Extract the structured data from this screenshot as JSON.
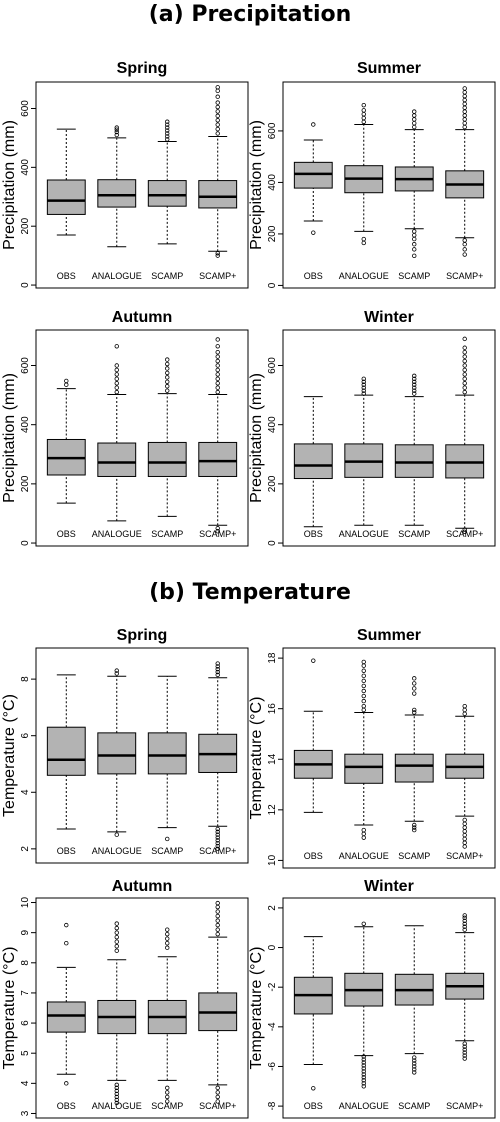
{
  "sections": [
    {
      "title": "(a) Precipitation"
    },
    {
      "title": "(b) Temperature"
    }
  ],
  "style": {
    "box_fill": "#b3b3b3",
    "stroke": "#000000",
    "outlier": "#000000"
  },
  "chart_data": [
    {
      "type": "boxplot",
      "title": "Spring",
      "ylabel": "Precipitation (mm)",
      "ylim": [
        -10,
        690
      ],
      "yticks": [
        0,
        200,
        400,
        600
      ],
      "categories": [
        "OBS",
        "ANALOGUE",
        "SCAMP",
        "SCAMP+"
      ],
      "boxes": [
        {
          "whisker_low": 170,
          "q1": 240,
          "median": 287,
          "q3": 357,
          "whisker_high": 530,
          "outliers": []
        },
        {
          "whisker_low": 130,
          "q1": 265,
          "median": 305,
          "q3": 358,
          "whisker_high": 500,
          "outliers": [
            510,
            520,
            528,
            535
          ]
        },
        {
          "whisker_low": 140,
          "q1": 268,
          "median": 305,
          "q3": 355,
          "whisker_high": 488,
          "outliers": [
            495,
            505,
            515,
            525,
            535,
            545,
            555
          ]
        },
        {
          "whisker_low": 115,
          "q1": 262,
          "median": 300,
          "q3": 355,
          "whisker_high": 505,
          "outliers": [
            100,
            108,
            515,
            530,
            545,
            560,
            575,
            590,
            605,
            620,
            640,
            660,
            672
          ]
        }
      ]
    },
    {
      "type": "boxplot",
      "title": "Summer",
      "ylabel": "Precipitation (mm)",
      "ylim": [
        -10,
        790
      ],
      "yticks": [
        0,
        200,
        400,
        600
      ],
      "categories": [
        "OBS",
        "ANALOGUE",
        "SCAMP",
        "SCAMP+"
      ],
      "boxes": [
        {
          "whisker_low": 250,
          "q1": 378,
          "median": 433,
          "q3": 478,
          "whisker_high": 565,
          "outliers": [
            205,
            625
          ]
        },
        {
          "whisker_low": 210,
          "q1": 360,
          "median": 415,
          "q3": 465,
          "whisker_high": 625,
          "outliers": [
            165,
            180,
            635,
            650,
            665,
            680,
            700
          ]
        },
        {
          "whisker_low": 220,
          "q1": 367,
          "median": 413,
          "q3": 460,
          "whisker_high": 605,
          "outliers": [
            115,
            140,
            160,
            180,
            195,
            210,
            615,
            630,
            645,
            660,
            675
          ]
        },
        {
          "whisker_low": 185,
          "q1": 340,
          "median": 392,
          "q3": 445,
          "whisker_high": 605,
          "outliers": [
            120,
            140,
            160,
            175,
            615,
            630,
            645,
            660,
            675,
            690,
            705,
            720,
            735,
            750,
            765
          ]
        }
      ]
    },
    {
      "type": "boxplot",
      "title": "Autumn",
      "ylabel": "Precipitation (mm)",
      "ylim": [
        -10,
        720
      ],
      "yticks": [
        0,
        200,
        400,
        600
      ],
      "categories": [
        "OBS",
        "ANALOGUE",
        "SCAMP",
        "SCAMP+"
      ],
      "boxes": [
        {
          "whisker_low": 135,
          "q1": 230,
          "median": 287,
          "q3": 350,
          "whisker_high": 522,
          "outliers": [
            535,
            548
          ]
        },
        {
          "whisker_low": 75,
          "q1": 225,
          "median": 272,
          "q3": 338,
          "whisker_high": 502,
          "outliers": [
            510,
            525,
            540,
            555,
            570,
            585,
            600,
            665
          ]
        },
        {
          "whisker_low": 90,
          "q1": 225,
          "median": 272,
          "q3": 340,
          "whisker_high": 505,
          "outliers": [
            515,
            530,
            545,
            560,
            575,
            590,
            605,
            620
          ]
        },
        {
          "whisker_low": 60,
          "q1": 225,
          "median": 277,
          "q3": 340,
          "whisker_high": 502,
          "outliers": [
            40,
            50,
            510,
            525,
            540,
            555,
            570,
            585,
            600,
            615,
            630,
            645,
            665,
            688
          ]
        }
      ]
    },
    {
      "type": "boxplot",
      "title": "Winter",
      "ylabel": "Precipitation (mm)",
      "ylim": [
        -10,
        720
      ],
      "yticks": [
        0,
        200,
        400,
        600
      ],
      "categories": [
        "OBS",
        "ANALOGUE",
        "SCAMP",
        "SCAMP+"
      ],
      "boxes": [
        {
          "whisker_low": 55,
          "q1": 218,
          "median": 262,
          "q3": 335,
          "whisker_high": 495,
          "outliers": []
        },
        {
          "whisker_low": 60,
          "q1": 222,
          "median": 275,
          "q3": 335,
          "whisker_high": 500,
          "outliers": [
            505,
            515,
            525,
            535,
            545,
            555
          ]
        },
        {
          "whisker_low": 60,
          "q1": 222,
          "median": 272,
          "q3": 332,
          "whisker_high": 495,
          "outliers": [
            505,
            515,
            525,
            535,
            545,
            555,
            565
          ]
        },
        {
          "whisker_low": 50,
          "q1": 220,
          "median": 272,
          "q3": 332,
          "whisker_high": 500,
          "outliers": [
            38,
            45,
            510,
            525,
            540,
            555,
            570,
            585,
            600,
            615,
            630,
            645,
            660,
            690
          ]
        }
      ]
    },
    {
      "type": "boxplot",
      "title": "Spring",
      "ylabel": "Temperature (°C)",
      "ylim": [
        1.5,
        9.1
      ],
      "yticks": [
        2,
        4,
        6,
        8
      ],
      "categories": [
        "OBS",
        "ANALOGUE",
        "SCAMP",
        "SCAMP+"
      ],
      "boxes": [
        {
          "whisker_low": 2.7,
          "q1": 4.6,
          "median": 5.15,
          "q3": 6.3,
          "whisker_high": 8.15,
          "outliers": []
        },
        {
          "whisker_low": 2.6,
          "q1": 4.65,
          "median": 5.3,
          "q3": 6.1,
          "whisker_high": 8.1,
          "outliers": [
            2.5,
            8.2,
            8.3
          ]
        },
        {
          "whisker_low": 2.75,
          "q1": 4.65,
          "median": 5.3,
          "q3": 6.1,
          "whisker_high": 8.1,
          "outliers": [
            2.35
          ]
        },
        {
          "whisker_low": 2.8,
          "q1": 4.7,
          "median": 5.35,
          "q3": 6.05,
          "whisker_high": 8.05,
          "outliers": [
            2.0,
            2.1,
            2.2,
            2.3,
            2.4,
            2.5,
            2.6,
            2.7,
            8.15,
            8.25,
            8.35,
            8.45,
            8.55
          ]
        }
      ]
    },
    {
      "type": "boxplot",
      "title": "Summer",
      "ylabel": "Temperature (°C)",
      "ylim": [
        9.7,
        18.4
      ],
      "yticks": [
        10,
        12,
        14,
        16,
        18
      ],
      "categories": [
        "OBS",
        "ANALOGUE",
        "SCAMP",
        "SCAMP+"
      ],
      "boxes": [
        {
          "whisker_low": 11.9,
          "q1": 13.25,
          "median": 13.8,
          "q3": 14.35,
          "whisker_high": 15.9,
          "outliers": [
            17.9
          ]
        },
        {
          "whisker_low": 11.4,
          "q1": 13.05,
          "median": 13.7,
          "q3": 14.2,
          "whisker_high": 15.85,
          "outliers": [
            10.9,
            11.05,
            11.2,
            15.95,
            16.1,
            16.3,
            16.5,
            16.7,
            16.9,
            17.1,
            17.3,
            17.5,
            17.7,
            17.85
          ]
        },
        {
          "whisker_low": 11.55,
          "q1": 13.1,
          "median": 13.75,
          "q3": 14.2,
          "whisker_high": 15.75,
          "outliers": [
            11.2,
            11.3,
            11.4,
            15.85,
            15.95,
            16.6,
            16.8,
            17.0,
            17.2
          ]
        },
        {
          "whisker_low": 11.75,
          "q1": 13.25,
          "median": 13.7,
          "q3": 14.2,
          "whisker_high": 15.7,
          "outliers": [
            10.55,
            10.7,
            10.85,
            11.0,
            11.15,
            11.3,
            11.45,
            11.6,
            15.8,
            15.95,
            16.1
          ]
        }
      ]
    },
    {
      "type": "boxplot",
      "title": "Autumn",
      "ylabel": "Temperature (°C)",
      "ylim": [
        2.85,
        10.15
      ],
      "yticks": [
        3,
        4,
        5,
        6,
        7,
        8,
        9,
        10
      ],
      "categories": [
        "OBS",
        "ANALOGUE",
        "SCAMP",
        "SCAMP+"
      ],
      "boxes": [
        {
          "whisker_low": 4.3,
          "q1": 5.7,
          "median": 6.25,
          "q3": 6.7,
          "whisker_high": 7.85,
          "outliers": [
            4.0,
            8.65,
            9.25
          ]
        },
        {
          "whisker_low": 4.1,
          "q1": 5.65,
          "median": 6.2,
          "q3": 6.75,
          "whisker_high": 8.1,
          "outliers": [
            3.35,
            3.45,
            3.55,
            3.65,
            3.75,
            3.85,
            3.95,
            8.4,
            8.55,
            8.7,
            8.85,
            9.0,
            9.15,
            9.3
          ]
        },
        {
          "whisker_low": 4.1,
          "q1": 5.65,
          "median": 6.2,
          "q3": 6.75,
          "whisker_high": 8.2,
          "outliers": [
            3.4,
            3.55,
            3.7,
            3.85,
            8.5,
            8.65,
            8.8,
            8.95,
            9.1
          ]
        },
        {
          "whisker_low": 3.95,
          "q1": 5.75,
          "median": 6.35,
          "q3": 7.0,
          "whisker_high": 8.85,
          "outliers": [
            3.4,
            3.55,
            3.7,
            3.85,
            8.95,
            9.1,
            9.25,
            9.4,
            9.55,
            9.7,
            9.85,
            9.98
          ]
        }
      ]
    },
    {
      "type": "boxplot",
      "title": "Winter",
      "ylabel": "Temperature (°C)",
      "ylim": [
        -8.6,
        2.5
      ],
      "yticks": [
        -8,
        -6,
        -4,
        -2,
        0,
        2
      ],
      "categories": [
        "OBS",
        "ANALOGUE",
        "SCAMP",
        "SCAMP+"
      ],
      "boxes": [
        {
          "whisker_low": -5.9,
          "q1": -3.35,
          "median": -2.4,
          "q3": -1.5,
          "whisker_high": 0.55,
          "outliers": [
            -7.1
          ]
        },
        {
          "whisker_low": -5.45,
          "q1": -2.95,
          "median": -2.15,
          "q3": -1.3,
          "whisker_high": 1.05,
          "outliers": [
            -7.0,
            -6.85,
            -6.7,
            -6.55,
            -6.4,
            -6.25,
            -6.1,
            -5.95,
            -5.8,
            -5.65,
            -5.5,
            1.2
          ]
        },
        {
          "whisker_low": -5.35,
          "q1": -2.9,
          "median": -2.15,
          "q3": -1.35,
          "whisker_high": 1.1,
          "outliers": [
            -6.3,
            -6.15,
            -6.0,
            -5.85,
            -5.7,
            -5.55
          ]
        },
        {
          "whisker_low": -4.7,
          "q1": -2.6,
          "median": -1.95,
          "q3": -1.3,
          "whisker_high": 0.75,
          "outliers": [
            -5.6,
            -5.45,
            -5.3,
            -5.15,
            -5.0,
            -4.85,
            0.9,
            1.05,
            1.2,
            1.35,
            1.5,
            1.62
          ]
        }
      ]
    }
  ]
}
